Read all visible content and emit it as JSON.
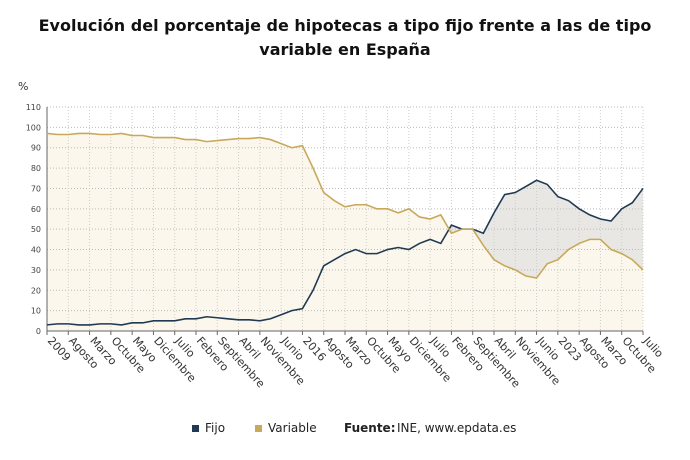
{
  "chart_data": {
    "type": "line",
    "title": "Evolución del porcentaje de hipotecas a tipo fijo frente a las de tipo variable en España",
    "y_label": "%",
    "categories": [
      "2009",
      null,
      "Agosto",
      null,
      "Marzo",
      null,
      "Octubre",
      null,
      "Mayo",
      null,
      "Diciembre",
      null,
      "Julio",
      null,
      "Febrero",
      null,
      "Septiembre",
      null,
      "Abril",
      null,
      "Noviembre",
      null,
      "Junio",
      null,
      "2016",
      null,
      "Agosto",
      null,
      "Marzo",
      null,
      "Octubre",
      null,
      "Mayo",
      null,
      "Diciembre",
      null,
      "Julio",
      null,
      "Febrero",
      null,
      "Septiembre",
      null,
      "Abril",
      null,
      "Noviembre",
      null,
      "Junio",
      null,
      "2023",
      null,
      "Agosto",
      null,
      "Marzo",
      null,
      "Octubre",
      null,
      "Julio"
    ],
    "series": [
      {
        "name": "Fijo",
        "color": "#1f3a52",
        "fill": "#e6e4e1",
        "values": [
          3,
          3.5,
          3.5,
          3,
          3,
          3.5,
          3.5,
          3,
          4,
          4,
          5,
          5,
          5,
          6,
          6,
          7,
          6.5,
          6,
          5.5,
          5.5,
          5,
          6,
          8,
          10,
          11,
          20,
          32,
          35,
          38,
          40,
          38,
          38,
          40,
          41,
          40,
          43,
          45,
          43,
          52,
          50,
          50,
          48,
          58,
          67,
          68,
          71,
          74,
          72,
          66,
          64,
          60,
          57,
          55,
          54,
          60,
          63,
          70
        ]
      },
      {
        "name": "Variable",
        "color": "#c8a95a",
        "fill": "#fbf7ec",
        "values": [
          97,
          96.5,
          96.5,
          97,
          97,
          96.5,
          96.5,
          97,
          96,
          96,
          95,
          95,
          95,
          94,
          94,
          93,
          93.5,
          94,
          94.5,
          94.5,
          95,
          94,
          92,
          90,
          91,
          80,
          68,
          64,
          61,
          62,
          62,
          60,
          60,
          58,
          60,
          56,
          55,
          57,
          48,
          50,
          50,
          42,
          35,
          32,
          30,
          27,
          26,
          33,
          35,
          40,
          43,
          45,
          45,
          40,
          38,
          35,
          30
        ]
      }
    ],
    "ylim": [
      0,
      110
    ],
    "yticks": [
      0,
      10,
      20,
      30,
      40,
      50,
      60,
      70,
      80,
      90,
      100,
      110
    ],
    "grid": true,
    "source_label": "Fuente:",
    "source": "INE, www.epdata.es"
  }
}
